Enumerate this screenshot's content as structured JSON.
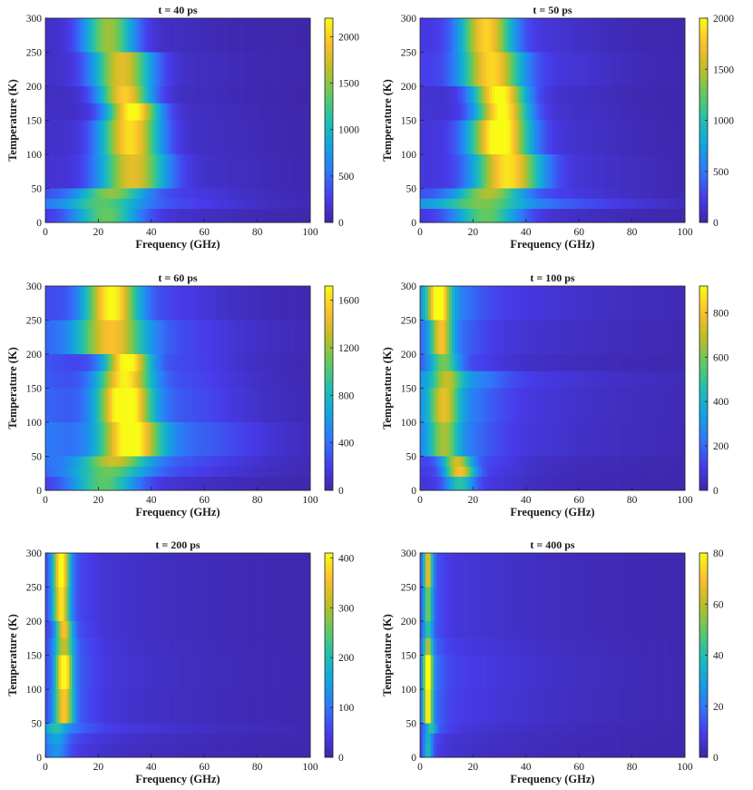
{
  "chart_data": [
    {
      "type": "heatmap",
      "title": "t = 40 ps",
      "xlabel": "Frequency (GHz)",
      "ylabel": "Temperature (K)",
      "xlim": [
        0,
        100
      ],
      "ylim": [
        0,
        300
      ],
      "xticks": [
        0,
        20,
        40,
        60,
        80,
        100
      ],
      "yticks": [
        0,
        50,
        100,
        150,
        200,
        250,
        300
      ],
      "colorbar": {
        "min": 0,
        "max": 2200,
        "ticks": [
          0,
          500,
          1000,
          1500,
          2000
        ]
      },
      "temperatures": [
        300,
        250,
        200,
        175,
        150,
        100,
        50,
        35,
        20
      ],
      "peaks": [
        {
          "center": 24,
          "width": 7,
          "amp": 1450,
          "tail": 120
        },
        {
          "center": 29,
          "width": 8,
          "amp": 1700,
          "tail": 130
        },
        {
          "center": 30,
          "width": 7,
          "amp": 1900,
          "tail": 110
        },
        {
          "center": 33,
          "width": 7,
          "amp": 2150,
          "tail": 130
        },
        {
          "center": 32,
          "width": 8,
          "amp": 1950,
          "tail": 140
        },
        {
          "center": 33,
          "width": 9,
          "amp": 1700,
          "tail": 160
        },
        {
          "center": 25,
          "width": 9,
          "amp": 1200,
          "tail": 330
        },
        {
          "center": 22,
          "width": 10,
          "amp": 900,
          "tail": 420
        },
        {
          "center": 23,
          "width": 9,
          "amp": 1200,
          "tail": 180
        }
      ]
    },
    {
      "type": "heatmap",
      "title": "t = 50 ps",
      "xlabel": "Frequency (GHz)",
      "ylabel": "Temperature (K)",
      "xlim": [
        0,
        100
      ],
      "ylim": [
        0,
        300
      ],
      "xticks": [
        0,
        20,
        40,
        60,
        80,
        100
      ],
      "yticks": [
        0,
        50,
        100,
        150,
        200,
        250,
        300
      ],
      "colorbar": {
        "min": 0,
        "max": 2000,
        "ticks": [
          0,
          500,
          1000,
          1500,
          2000
        ]
      },
      "temperatures": [
        300,
        250,
        200,
        175,
        150,
        100,
        50,
        35,
        20
      ],
      "peaks": [
        {
          "center": 25,
          "width": 7,
          "amp": 1650,
          "tail": 200
        },
        {
          "center": 27,
          "width": 8,
          "amp": 1650,
          "tail": 230
        },
        {
          "center": 30,
          "width": 7,
          "amp": 1950,
          "tail": 150
        },
        {
          "center": 31,
          "width": 7,
          "amp": 1900,
          "tail": 160
        },
        {
          "center": 30,
          "width": 8,
          "amp": 2000,
          "tail": 180
        },
        {
          "center": 33,
          "width": 9,
          "amp": 1750,
          "tail": 190
        },
        {
          "center": 26,
          "width": 9,
          "amp": 1200,
          "tail": 300
        },
        {
          "center": 24,
          "width": 11,
          "amp": 800,
          "tail": 520
        },
        {
          "center": 25,
          "width": 9,
          "amp": 1100,
          "tail": 160
        }
      ]
    },
    {
      "type": "heatmap",
      "title": "t = 60 ps",
      "xlabel": "Frequency (GHz)",
      "ylabel": "Temperature (K)",
      "xlim": [
        0,
        100
      ],
      "ylim": [
        0,
        300
      ],
      "xticks": [
        0,
        20,
        40,
        60,
        80,
        100
      ],
      "yticks": [
        0,
        50,
        100,
        150,
        200,
        250,
        300
      ],
      "colorbar": {
        "min": 0,
        "max": 1720,
        "ticks": [
          0,
          400,
          800,
          1200,
          1600
        ]
      },
      "temperatures": [
        300,
        250,
        200,
        175,
        150,
        100,
        50,
        35,
        20
      ],
      "peaks": [
        {
          "center": 25,
          "width": 7,
          "amp": 1500,
          "tail": 260
        },
        {
          "center": 25,
          "width": 9,
          "amp": 1200,
          "tail": 320
        },
        {
          "center": 31,
          "width": 6,
          "amp": 1600,
          "tail": 300
        },
        {
          "center": 30,
          "width": 7,
          "amp": 1450,
          "tail": 320
        },
        {
          "center": 30,
          "width": 7,
          "amp": 1700,
          "tail": 360
        },
        {
          "center": 32,
          "width": 8,
          "amp": 1500,
          "tail": 450
        },
        {
          "center": 26,
          "width": 9,
          "amp": 1000,
          "tail": 380
        },
        {
          "center": 24,
          "width": 10,
          "amp": 800,
          "tail": 300
        },
        {
          "center": 22,
          "width": 9,
          "amp": 900,
          "tail": 150
        }
      ]
    },
    {
      "type": "heatmap",
      "title": "t = 100 ps",
      "xlabel": "Frequency (GHz)",
      "ylabel": "Temperature (K)",
      "xlim": [
        0,
        100
      ],
      "ylim": [
        0,
        300
      ],
      "xticks": [
        0,
        20,
        40,
        60,
        80,
        100
      ],
      "yticks": [
        0,
        50,
        100,
        150,
        200,
        250,
        300
      ],
      "colorbar": {
        "min": 0,
        "max": 920,
        "ticks": [
          0,
          200,
          400,
          600,
          800
        ]
      },
      "temperatures": [
        300,
        250,
        200,
        175,
        150,
        100,
        50,
        35,
        20
      ],
      "peaks": [
        {
          "center": 7,
          "width": 3,
          "amp": 750,
          "tail": 220
        },
        {
          "center": 8,
          "width": 3,
          "amp": 600,
          "tail": 170
        },
        {
          "center": 9,
          "width": 4,
          "amp": 450,
          "tail": 120
        },
        {
          "center": 10,
          "width": 4,
          "amp": 400,
          "tail": 260
        },
        {
          "center": 9,
          "width": 4,
          "amp": 500,
          "tail": 220
        },
        {
          "center": 9,
          "width": 4,
          "amp": 420,
          "tail": 200
        },
        {
          "center": 14,
          "width": 4,
          "amp": 600,
          "tail": 120
        },
        {
          "center": 15,
          "width": 4,
          "amp": 700,
          "tail": 100
        },
        {
          "center": 15,
          "width": 4,
          "amp": 400,
          "tail": 80
        }
      ]
    },
    {
      "type": "heatmap",
      "title": "t = 200 ps",
      "xlabel": "Frequency (GHz)",
      "ylabel": "Temperature (K)",
      "xlim": [
        0,
        100
      ],
      "ylim": [
        0,
        300
      ],
      "xticks": [
        0,
        20,
        40,
        60,
        80,
        100
      ],
      "yticks": [
        0,
        50,
        100,
        150,
        200,
        250,
        300
      ],
      "colorbar": {
        "min": 0,
        "max": 410,
        "ticks": [
          0,
          100,
          200,
          300,
          400
        ]
      },
      "temperatures": [
        300,
        250,
        200,
        175,
        150,
        100,
        50,
        35,
        20
      ],
      "peaks": [
        {
          "center": 6,
          "width": 2.2,
          "amp": 370,
          "tail": 50
        },
        {
          "center": 6,
          "width": 2.2,
          "amp": 330,
          "tail": 50
        },
        {
          "center": 7,
          "width": 2.2,
          "amp": 300,
          "tail": 50
        },
        {
          "center": 7,
          "width": 2.5,
          "amp": 250,
          "tail": 55
        },
        {
          "center": 7,
          "width": 2.2,
          "amp": 380,
          "tail": 60
        },
        {
          "center": 7,
          "width": 2.5,
          "amp": 300,
          "tail": 55
        },
        {
          "center": 4,
          "width": 3,
          "amp": 100,
          "tail": 80
        },
        {
          "center": 4,
          "width": 3,
          "amp": 90,
          "tail": 50
        },
        {
          "center": 4,
          "width": 3,
          "amp": 80,
          "tail": 40
        }
      ]
    },
    {
      "type": "heatmap",
      "title": "t = 400 ps",
      "xlabel": "Frequency (GHz)",
      "ylabel": "Temperature (K)",
      "xlim": [
        0,
        100
      ],
      "ylim": [
        0,
        300
      ],
      "xticks": [
        0,
        20,
        40,
        60,
        80,
        100
      ],
      "yticks": [
        0,
        50,
        100,
        150,
        200,
        250,
        300
      ],
      "colorbar": {
        "min": 0,
        "max": 80,
        "ticks": [
          0,
          20,
          40,
          60,
          80
        ]
      },
      "temperatures": [
        300,
        250,
        200,
        175,
        150,
        100,
        50,
        35,
        20
      ],
      "peaks": [
        {
          "center": 3,
          "width": 1.2,
          "amp": 55,
          "tail": 10
        },
        {
          "center": 3,
          "width": 1.2,
          "amp": 40,
          "tail": 10
        },
        {
          "center": 3,
          "width": 1.2,
          "amp": 30,
          "tail": 10
        },
        {
          "center": 3,
          "width": 1.2,
          "amp": 45,
          "tail": 12
        },
        {
          "center": 3,
          "width": 1.2,
          "amp": 72,
          "tail": 14
        },
        {
          "center": 3,
          "width": 1.2,
          "amp": 65,
          "tail": 13
        },
        {
          "center": 4,
          "width": 1.5,
          "amp": 30,
          "tail": 10
        },
        {
          "center": 3,
          "width": 1.2,
          "amp": 25,
          "tail": 8
        },
        {
          "center": 3,
          "width": 1.2,
          "amp": 30,
          "tail": 7
        }
      ]
    }
  ]
}
